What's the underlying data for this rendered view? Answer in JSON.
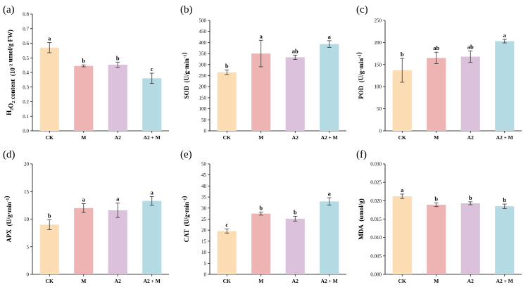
{
  "categories": [
    "CK",
    "M",
    "A2",
    "A2 + M"
  ],
  "colors": [
    "#fbdcb3",
    "#eeb4b4",
    "#dcc1dc",
    "#b4dbe3"
  ],
  "chart_data": [
    {
      "type": "bar",
      "panel_label": "(a)",
      "ylabel_parts": [
        "H",
        "2",
        "O",
        "2",
        " content  (10",
        "-2",
        " umol/g FW)"
      ],
      "categories": [
        "CK",
        "M",
        "A2",
        "A2 + M"
      ],
      "values": [
        0.57,
        0.445,
        0.453,
        0.36
      ],
      "errors": [
        0.035,
        0.007,
        0.018,
        0.035
      ],
      "significance": [
        "a",
        "b",
        "b",
        "c"
      ],
      "ylim": [
        0,
        0.8
      ],
      "yticks": [
        "0.0",
        "0.1",
        "0.2",
        "0.3",
        "0.4",
        "0.5",
        "0.6",
        "0.7",
        "0.8"
      ]
    },
    {
      "type": "bar",
      "panel_label": "(b)",
      "ylabel_parts": [
        "SOD  (U/g·min",
        "-1",
        ")"
      ],
      "categories": [
        "CK",
        "M",
        "A2",
        "A2 + M"
      ],
      "values": [
        265,
        350,
        333,
        393
      ],
      "errors": [
        10,
        60,
        10,
        15
      ],
      "significance": [
        "b",
        "a",
        "ab",
        "a"
      ],
      "ylim": [
        0,
        500
      ],
      "yticks": [
        "0",
        "50",
        "100",
        "150",
        "200",
        "250",
        "300",
        "350",
        "400",
        "450",
        "500"
      ]
    },
    {
      "type": "bar",
      "panel_label": "(c)",
      "ylabel_parts": [
        "POD  (U/g·min",
        "-1",
        ")"
      ],
      "categories": [
        "CK",
        "M",
        "A2",
        "A2 + M"
      ],
      "values": [
        137,
        165,
        168,
        203
      ],
      "errors": [
        27,
        13,
        13,
        4
      ],
      "significance": [
        "b",
        "ab",
        "ab",
        "a"
      ],
      "ylim": [
        0,
        250
      ],
      "yticks": [
        "0",
        "50",
        "100",
        "150",
        "200",
        "250"
      ]
    },
    {
      "type": "bar",
      "panel_label": "(d)",
      "ylabel_parts": [
        "APX  (U/g·min",
        "-1",
        ")"
      ],
      "categories": [
        "CK",
        "M",
        "A2",
        "A2 + M"
      ],
      "values": [
        9.0,
        12.0,
        11.6,
        13.3
      ],
      "errors": [
        0.9,
        0.8,
        1.3,
        0.8
      ],
      "significance": [
        "b",
        "a",
        "a",
        "a"
      ],
      "ylim": [
        0,
        20
      ],
      "yticks": [
        "0",
        "5",
        "10",
        "15",
        "20"
      ]
    },
    {
      "type": "bar",
      "panel_label": "(e)",
      "ylabel_parts": [
        "CAT  (U/g·min",
        "-1",
        ")"
      ],
      "categories": [
        "CK",
        "M",
        "A2",
        "A2 + M"
      ],
      "values": [
        19.6,
        27.5,
        25.2,
        33.0
      ],
      "errors": [
        0.9,
        0.7,
        1.1,
        1.7
      ],
      "significance": [
        "c",
        "b",
        "b",
        "a"
      ],
      "ylim": [
        0,
        50
      ],
      "yticks": [
        "0",
        "5",
        "10",
        "15",
        "20",
        "25",
        "30",
        "35",
        "40",
        "45",
        "50"
      ]
    },
    {
      "type": "bar",
      "panel_label": "(f)",
      "ylabel_parts": [
        "MDA  (umol/g)"
      ],
      "categories": [
        "CK",
        "M",
        "A2",
        "A2 + M"
      ],
      "values": [
        0.0212,
        0.0189,
        0.0193,
        0.0185
      ],
      "errors": [
        0.0006,
        0.0005,
        0.0004,
        0.0006
      ],
      "significance": [
        "a",
        "b",
        "b",
        "b"
      ],
      "ylim": [
        0,
        0.03
      ],
      "yticks": [
        "0.000",
        "0.005",
        "0.010",
        "0.015",
        "0.020",
        "0.025",
        "0.030"
      ]
    }
  ]
}
